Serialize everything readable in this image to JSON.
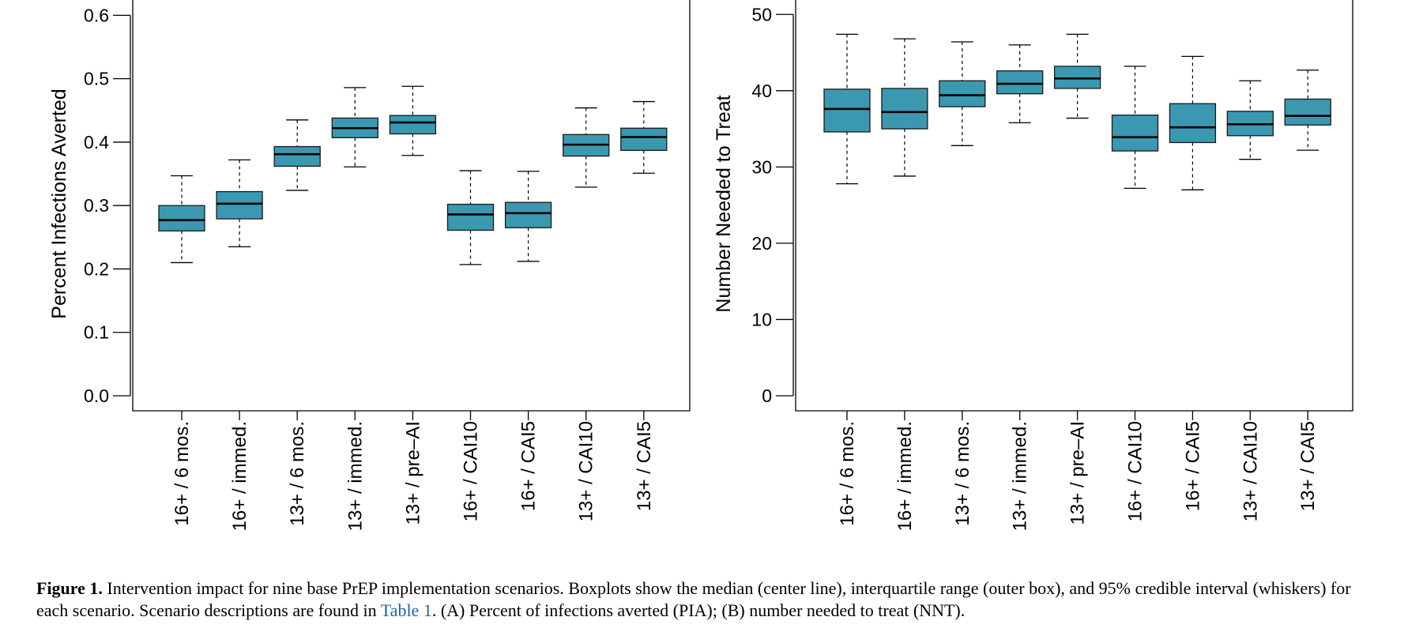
{
  "chart_data": [
    {
      "type": "boxplot",
      "panel": "A",
      "ylabel": "Percent Infections Averted",
      "ylim": [
        0.0,
        0.62
      ],
      "yticks": [
        0.0,
        0.1,
        0.2,
        0.3,
        0.4,
        0.5,
        0.6
      ],
      "ytick_labels": [
        "0.0",
        "0.1",
        "0.2",
        "0.3",
        "0.4",
        "0.5",
        "0.6"
      ],
      "box_color": "#3b98b1",
      "grid": false,
      "categories": [
        "16+ / 6 mos.",
        "16+ / immed.",
        "13+ / 6 mos.",
        "13+ / immed.",
        "13+ / pre–AI",
        "16+ / CAI10",
        "16+ / CAI5",
        "13+ / CAI10",
        "13+ / CAI5"
      ],
      "boxes": [
        {
          "low": 0.21,
          "q1": 0.26,
          "median": 0.277,
          "q3": 0.3,
          "high": 0.347
        },
        {
          "low": 0.235,
          "q1": 0.279,
          "median": 0.303,
          "q3": 0.322,
          "high": 0.372
        },
        {
          "low": 0.324,
          "q1": 0.362,
          "median": 0.381,
          "q3": 0.393,
          "high": 0.435
        },
        {
          "low": 0.361,
          "q1": 0.407,
          "median": 0.422,
          "q3": 0.438,
          "high": 0.486
        },
        {
          "low": 0.379,
          "q1": 0.413,
          "median": 0.431,
          "q3": 0.442,
          "high": 0.488
        },
        {
          "low": 0.207,
          "q1": 0.261,
          "median": 0.286,
          "q3": 0.302,
          "high": 0.355
        },
        {
          "low": 0.212,
          "q1": 0.265,
          "median": 0.288,
          "q3": 0.305,
          "high": 0.354
        },
        {
          "low": 0.329,
          "q1": 0.378,
          "median": 0.396,
          "q3": 0.412,
          "high": 0.454
        },
        {
          "low": 0.351,
          "q1": 0.387,
          "median": 0.408,
          "q3": 0.422,
          "high": 0.464
        }
      ]
    },
    {
      "type": "boxplot",
      "panel": "B",
      "ylabel": "Number Needed to Treat",
      "ylim": [
        0,
        51.5
      ],
      "yticks": [
        0,
        10,
        20,
        30,
        40,
        50
      ],
      "ytick_labels": [
        "0",
        "10",
        "20",
        "30",
        "40",
        "50"
      ],
      "box_color": "#3b98b1",
      "grid": false,
      "categories": [
        "16+ / 6 mos.",
        "16+ / immed.",
        "13+ / 6 mos.",
        "13+ / immed.",
        "13+ / pre–AI",
        "16+ / CAI10",
        "16+ / CAI5",
        "13+ / CAI10",
        "13+ / CAI5"
      ],
      "boxes": [
        {
          "low": 27.8,
          "q1": 34.6,
          "median": 37.6,
          "q3": 40.2,
          "high": 47.4
        },
        {
          "low": 28.8,
          "q1": 35.0,
          "median": 37.2,
          "q3": 40.3,
          "high": 46.8
        },
        {
          "low": 32.8,
          "q1": 37.9,
          "median": 39.4,
          "q3": 41.3,
          "high": 46.4
        },
        {
          "low": 35.8,
          "q1": 39.6,
          "median": 40.9,
          "q3": 42.6,
          "high": 46.0
        },
        {
          "low": 36.4,
          "q1": 40.3,
          "median": 41.6,
          "q3": 43.2,
          "high": 47.4
        },
        {
          "low": 27.2,
          "q1": 32.1,
          "median": 33.9,
          "q3": 36.8,
          "high": 43.2
        },
        {
          "low": 27.0,
          "q1": 33.2,
          "median": 35.2,
          "q3": 38.3,
          "high": 44.5
        },
        {
          "low": 31.0,
          "q1": 34.1,
          "median": 35.6,
          "q3": 37.3,
          "high": 41.3
        },
        {
          "low": 32.2,
          "q1": 35.5,
          "median": 36.7,
          "q3": 38.9,
          "high": 42.7
        }
      ]
    }
  ],
  "caption": {
    "label": "Figure 1.",
    "text_1": " Intervention impact for nine base PrEP implementation scenarios. Boxplots show the median (center line), interquartile range (outer box), and 95% credible interval (whiskers) for each scenario. Scenario descriptions are found in ",
    "link": "Table 1",
    "text_2": ". (A) Percent of infections averted (PIA); (B) number needed to treat (NNT)."
  }
}
